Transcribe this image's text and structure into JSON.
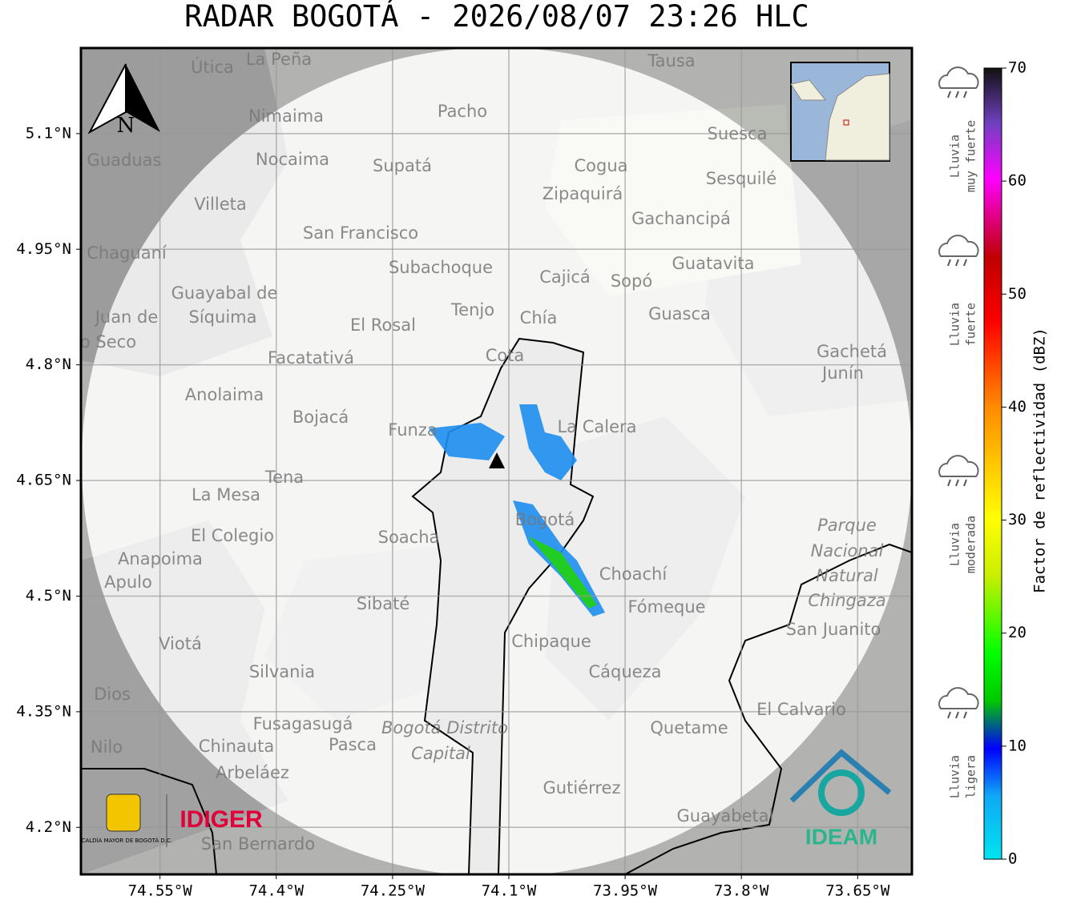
{
  "title": "RADAR BOGOTÁ - 2026/08/07 23:26 HLC",
  "map": {
    "lon_range": [
      -74.652,
      -73.58
    ],
    "lat_range": [
      4.139,
      5.211
    ],
    "xticks": [
      {
        "value": -74.55,
        "label": "74.55°W"
      },
      {
        "value": -74.4,
        "label": "74.4°W"
      },
      {
        "value": -74.25,
        "label": "74.25°W"
      },
      {
        "value": -74.1,
        "label": "74.1°W"
      },
      {
        "value": -73.95,
        "label": "73.95°W"
      },
      {
        "value": -73.8,
        "label": "73.8°W"
      },
      {
        "value": -73.65,
        "label": "73.65°W"
      }
    ],
    "yticks": [
      {
        "value": 5.1,
        "label": "5.1°N"
      },
      {
        "value": 4.95,
        "label": "4.95°N"
      },
      {
        "value": 4.8,
        "label": "4.8°N"
      },
      {
        "value": 4.65,
        "label": "4.65°N"
      },
      {
        "value": 4.5,
        "label": "4.5°N"
      },
      {
        "value": 4.35,
        "label": "4.35°N"
      },
      {
        "value": 4.2,
        "label": "4.2°N"
      }
    ],
    "places": [
      "La Peña",
      "Útica",
      "Tausa",
      "Pacho",
      "Nimaima",
      "Guaduas",
      "Nocaima",
      "Supatá",
      "Suesca",
      "Cogua",
      "Sesquilé",
      "Zipaquirá",
      "Villeta",
      "Gachancipá",
      "San Francisco",
      "Chaguaní",
      "Guatavita",
      "Subachoque",
      "Cajicá",
      "Sopó",
      "Guayabal de",
      "Síquima",
      "Tenjo",
      "Chía",
      "Guasca",
      "El Rosal",
      "Cota",
      "Gachetá",
      "Junín",
      "Facatativá",
      "Anolaima",
      "Bojacá",
      "La Calera",
      "Funza",
      "Tena",
      "La Mesa",
      "Bogotá",
      "Soacha",
      "El Colegio",
      "Parque",
      "Nacional",
      "Natural",
      "Chingaza",
      "Anapoima",
      "Apulo",
      "Choachí",
      "Sibaté",
      "Fómeque",
      "San Juanito",
      "Chipaque",
      "Viotá",
      "Silvania",
      "Cáqueza",
      "El Calvario",
      "Fusagasugá",
      "Bogotá Distrito",
      "Capital",
      "Quetame",
      "Chinauta",
      "Pasca",
      "Arbeláez",
      "Gutiérrez",
      "Guayabetal",
      "San Bernardo",
      "Nilo",
      "Dios",
      "Juan de",
      "o Seco"
    ],
    "compass": "N"
  },
  "colorbar": {
    "label": "Factor de reflectividad (dBZ)",
    "range": [
      0,
      70
    ],
    "ticks": [
      0,
      10,
      20,
      30,
      40,
      50,
      60,
      70
    ],
    "categories": [
      {
        "lines": [
          "Lluvia",
          "muy fuerte"
        ]
      },
      {
        "lines": [
          "Lluvia",
          "fuerte"
        ]
      },
      {
        "lines": [
          "Lluvia",
          "moderada"
        ]
      },
      {
        "lines": [
          "Lluvia",
          "ligera"
        ]
      }
    ]
  },
  "logos": {
    "alcaldia": "ALCALDÍA MAYOR DE BOGOTÁ D.C.",
    "idiger": "IDIGER",
    "ideam": "IDEAM"
  }
}
